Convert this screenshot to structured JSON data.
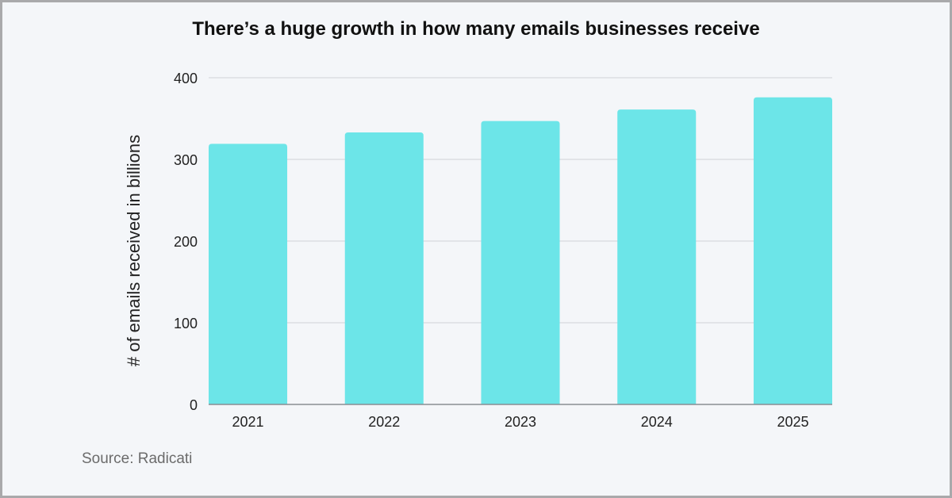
{
  "chart_data": {
    "type": "bar",
    "title": "There’s a huge growth in how many emails businesses receive",
    "xlabel": "",
    "ylabel": "# of emails received in billions",
    "categories": [
      "2021",
      "2022",
      "2023",
      "2024",
      "2025"
    ],
    "values": [
      319,
      333,
      347,
      361,
      376
    ],
    "ylim": [
      0,
      400
    ],
    "yticks": [
      0,
      100,
      200,
      300,
      400
    ],
    "ytick_labels": [
      "0",
      "100",
      "200",
      "300",
      "400"
    ],
    "grid": true,
    "legend": "none",
    "bar_color": "#6ce5e8",
    "gridline_color": "#cfd1d6",
    "axis_color": "#8a8d93"
  },
  "source": "Source: Radicati"
}
